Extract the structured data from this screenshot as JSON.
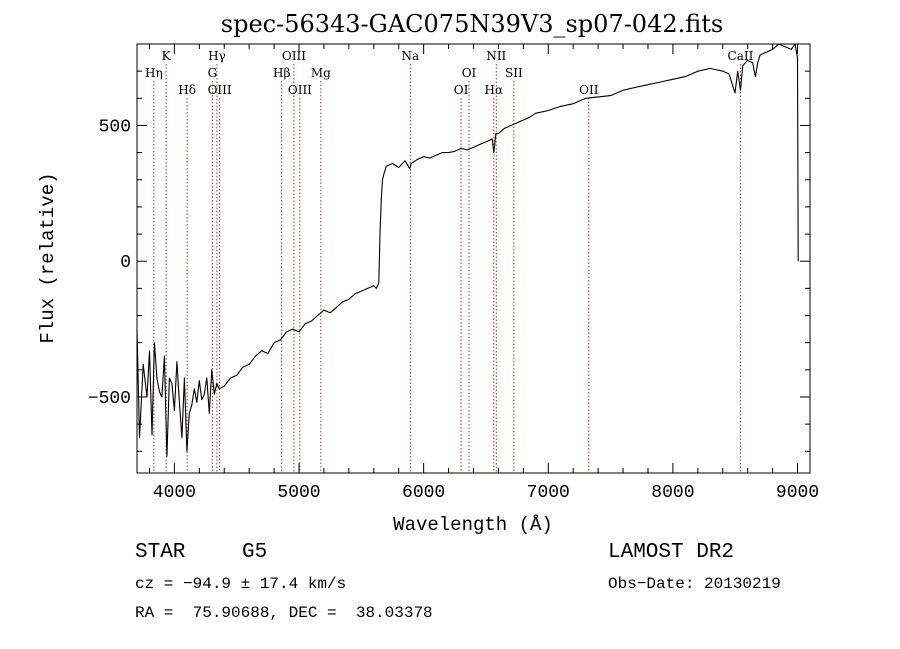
{
  "chart_data": {
    "type": "line",
    "title": "spec-56343-GAC075N39V3_sp07-042.fits",
    "xlabel": "Wavelength (Å)",
    "ylabel": "Flux (relative)",
    "xlim": [
      3700,
      9100
    ],
    "ylim": [
      -780,
      800
    ],
    "xticks": [
      4000,
      5000,
      6000,
      7000,
      8000,
      9000
    ],
    "yticks": [
      -500,
      0,
      500
    ],
    "grid": false,
    "line_color": "#000000",
    "marker_color": "#b03030",
    "series": [
      {
        "x": [
          3700,
          3720,
          3750,
          3780,
          3800,
          3820,
          3840,
          3860,
          3880,
          3900,
          3920,
          3940,
          3960,
          3980,
          4000,
          4020,
          4040,
          4060,
          4080,
          4100,
          4120,
          4140,
          4160,
          4180,
          4200,
          4220,
          4240,
          4260,
          4280,
          4300,
          4320,
          4340,
          4360,
          4400,
          4450,
          4500,
          4550,
          4600,
          4650,
          4700,
          4750,
          4800,
          4850,
          4900,
          4950,
          5000,
          5050,
          5100,
          5150,
          5200,
          5250,
          5300,
          5350,
          5400,
          5450,
          5500,
          5550,
          5600,
          5620,
          5640,
          5650,
          5660,
          5670,
          5680,
          5700,
          5750,
          5800,
          5850,
          5890,
          5900,
          5950,
          6000,
          6050,
          6100,
          6150,
          6200,
          6250,
          6300,
          6350,
          6400,
          6450,
          6500,
          6550,
          6563,
          6580,
          6600,
          6650,
          6700,
          6750,
          6800,
          6850,
          6900,
          6950,
          7000,
          7100,
          7200,
          7300,
          7400,
          7500,
          7600,
          7700,
          7800,
          7900,
          8000,
          8100,
          8200,
          8300,
          8400,
          8450,
          8498,
          8520,
          8542,
          8560,
          8600,
          8640,
          8662,
          8680,
          8700,
          8750,
          8800,
          8850,
          8900,
          8950,
          8980,
          9000,
          9005
        ],
        "values": [
          -250,
          -650,
          -380,
          -500,
          -330,
          -640,
          -300,
          -430,
          -480,
          -500,
          -350,
          -720,
          -430,
          -450,
          -550,
          -370,
          -520,
          -650,
          -430,
          -700,
          -560,
          -530,
          -470,
          -520,
          -440,
          -510,
          -490,
          -430,
          -560,
          -400,
          -490,
          -450,
          -470,
          -460,
          -430,
          -420,
          -390,
          -380,
          -350,
          -330,
          -340,
          -300,
          -290,
          -260,
          -250,
          -260,
          -230,
          -220,
          -200,
          -180,
          -190,
          -170,
          -150,
          -140,
          -120,
          -110,
          -100,
          -90,
          -100,
          -80,
          100,
          230,
          300,
          320,
          350,
          360,
          345,
          370,
          340,
          360,
          375,
          385,
          380,
          390,
          400,
          400,
          405,
          415,
          410,
          420,
          430,
          440,
          450,
          400,
          470,
          470,
          490,
          500,
          510,
          520,
          530,
          545,
          550,
          555,
          570,
          580,
          600,
          605,
          610,
          630,
          640,
          650,
          660,
          670,
          680,
          700,
          710,
          700,
          690,
          620,
          700,
          630,
          720,
          740,
          730,
          680,
          730,
          760,
          770,
          780,
          800,
          790,
          780,
          800,
          750,
          0
        ]
      }
    ],
    "markers": [
      {
        "label": "Hη",
        "x": 3835,
        "row": 2
      },
      {
        "label": "K",
        "x": 3934,
        "row": 1
      },
      {
        "label": "Hδ",
        "x": 4102,
        "row": 3
      },
      {
        "label": "Hγ",
        "x": 4341,
        "row": 1
      },
      {
        "label": "G",
        "x": 4305,
        "row": 2
      },
      {
        "label": "OIII",
        "x": 4363,
        "row": 3
      },
      {
        "label": "OIII",
        "x": 4959,
        "row": 1
      },
      {
        "label": "Hβ",
        "x": 4861,
        "row": 2
      },
      {
        "label": "OIII",
        "x": 5007,
        "row": 3
      },
      {
        "label": "Mg",
        "x": 5175,
        "row": 2
      },
      {
        "label": "Na",
        "x": 5893,
        "row": 1
      },
      {
        "label": "OI",
        "x": 6300,
        "row": 3
      },
      {
        "label": "OI",
        "x": 6364,
        "row": 2
      },
      {
        "label": "NII",
        "x": 6583,
        "row": 1
      },
      {
        "label": "Hα",
        "x": 6563,
        "row": 3
      },
      {
        "label": "SII",
        "x": 6724,
        "row": 2
      },
      {
        "label": "OII",
        "x": 7325,
        "row": 3
      },
      {
        "label": "CaII",
        "x": 8542,
        "row": 1
      }
    ]
  },
  "info": {
    "object_type": "STAR",
    "subclass": "G5",
    "survey": "LAMOST DR2",
    "cz": "cz = −94.9 ± 17.4 km/s",
    "obs_date": "Obs−Date: 20130219",
    "coords": "RA =  75.90688, DEC =  38.03378"
  }
}
